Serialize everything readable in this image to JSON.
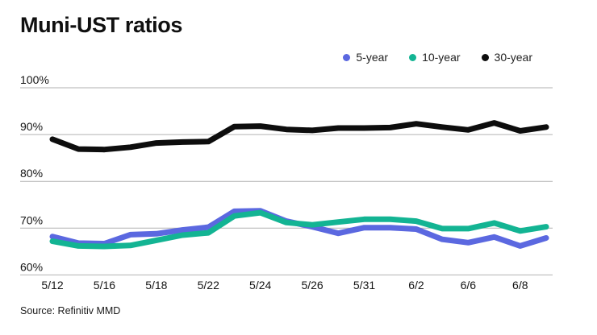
{
  "page": {
    "title": "Muni-UST ratios",
    "source": "Source: Refinitiv MMD"
  },
  "colors": {
    "background": "#ffffff",
    "grid": "#b2b2b2",
    "text": "#151515",
    "accent_blue": "#5b68e0",
    "accent_teal": "#13b493",
    "accent_black": "#0d0d0d"
  },
  "chart_data": {
    "type": "line",
    "title": "Muni-UST ratios",
    "unit": "%",
    "grid": "horizontal-only",
    "legend_position": "top-right",
    "ylim": [
      60,
      100
    ],
    "y_ticks": [
      100,
      90,
      80,
      70,
      60
    ],
    "y_tick_labels": [
      "100%",
      "90%",
      "80%",
      "70%",
      "60%"
    ],
    "x_tick_labels": [
      "5/12",
      "5/16",
      "5/18",
      "5/22",
      "5/24",
      "5/26",
      "5/31",
      "6/2",
      "6/6",
      "6/8"
    ],
    "points_per_x_label": 2,
    "series": [
      {
        "name": "5-year",
        "color": "#5b68e0",
        "values": [
          68.2,
          66.8,
          66.7,
          68.6,
          68.8,
          69.6,
          70.2,
          73.6,
          73.7,
          71.5,
          70.3,
          68.9,
          70.1,
          70.1,
          69.8,
          67.6,
          66.9,
          68.1,
          66.2,
          67.9
        ]
      },
      {
        "name": "10-year",
        "color": "#13b493",
        "values": [
          67.2,
          66.2,
          66.1,
          66.3,
          67.4,
          68.5,
          69.0,
          72.6,
          73.3,
          71.2,
          70.7,
          71.3,
          71.9,
          71.9,
          71.5,
          69.9,
          69.9,
          71.1,
          69.4,
          70.3
        ]
      },
      {
        "name": "30-year",
        "color": "#0d0d0d",
        "values": [
          89.0,
          86.9,
          86.8,
          87.3,
          88.2,
          88.4,
          88.5,
          91.7,
          91.8,
          91.1,
          90.9,
          91.4,
          91.4,
          91.5,
          92.3,
          91.6,
          91.0,
          92.5,
          90.8,
          91.6
        ]
      }
    ]
  }
}
